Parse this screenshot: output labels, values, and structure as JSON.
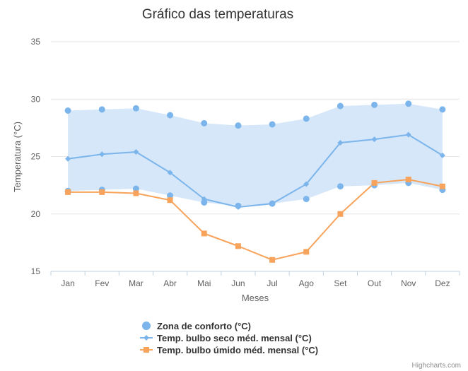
{
  "chart_data": {
    "type": "line",
    "title": "Gráfico das temperaturas",
    "xlabel": "Meses",
    "ylabel": "Temperatura (°C)",
    "ylim": [
      15,
      35
    ],
    "yticks": [
      15,
      20,
      25,
      30,
      35
    ],
    "grid": true,
    "legend_position": "bottom-center",
    "categories": [
      "Jan",
      "Fev",
      "Mar",
      "Abr",
      "Mai",
      "Jun",
      "Jul",
      "Ago",
      "Set",
      "Out",
      "Nov",
      "Dez"
    ],
    "series": [
      {
        "name": "Zona de conforto (°C)",
        "kind": "arearange",
        "color": "#7cb5ec",
        "fill": "#d5e7f8",
        "low": [
          22.0,
          22.1,
          22.2,
          21.6,
          21.0,
          20.7,
          20.9,
          21.3,
          22.4,
          22.5,
          22.7,
          22.1
        ],
        "high": [
          29.0,
          29.1,
          29.2,
          28.6,
          27.9,
          27.7,
          27.8,
          28.3,
          29.4,
          29.5,
          29.6,
          29.1
        ]
      },
      {
        "name": "Temp. bulbo seco méd. mensal (°C)",
        "kind": "line",
        "marker": "diamond",
        "color": "#7cb5ec",
        "values": [
          24.8,
          25.2,
          25.4,
          23.6,
          21.3,
          20.6,
          20.9,
          22.6,
          26.2,
          26.5,
          26.9,
          25.1
        ]
      },
      {
        "name": "Temp. bulbo úmido méd. mensal (°C)",
        "kind": "line",
        "marker": "square",
        "color": "#f7a35c",
        "values": [
          21.9,
          21.9,
          21.8,
          21.2,
          18.3,
          17.2,
          16.0,
          16.7,
          20.0,
          22.7,
          23.0,
          22.4
        ]
      }
    ]
  },
  "credits": "Highcharts.com"
}
